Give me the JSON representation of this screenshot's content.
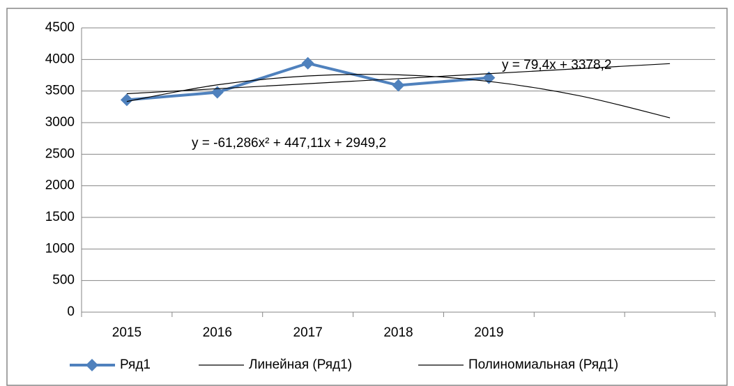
{
  "chart_data": {
    "type": "line",
    "categories": [
      "2015",
      "2016",
      "2017",
      "2018",
      "2019",
      null,
      null
    ],
    "series": [
      {
        "name": "Ряд1",
        "color": "#4f81bd",
        "values": [
          3360,
          3480,
          3940,
          3590,
          3710,
          null,
          null
        ]
      },
      {
        "name": "Линейная (Ряд1)",
        "color": "#000000",
        "values": [
          3457.6,
          3537,
          3616.4,
          3695.8,
          3775.2,
          3854.6,
          3934
        ]
      },
      {
        "name": "Полиномиальная (Ряд1)",
        "color": "#000000",
        "values": [
          3335,
          3598.3,
          3739,
          3757.1,
          3652.6,
          3425.6,
          3076
        ]
      }
    ],
    "annotations": [
      "y = 79,4x + 3378,2",
      "y = -61,286x² + 447,11x + 2949,2"
    ],
    "ylim": [
      0,
      4500
    ],
    "yticks": [
      0,
      500,
      1000,
      1500,
      2000,
      2500,
      3000,
      3500,
      4000,
      4500
    ],
    "grid": true,
    "legend": "bottom"
  }
}
